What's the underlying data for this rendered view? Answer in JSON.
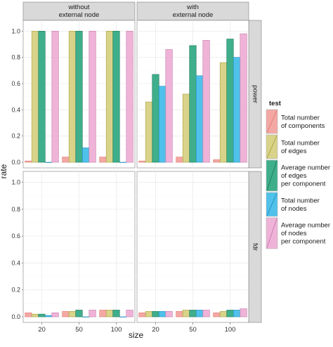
{
  "chart_data": {
    "type": "bar",
    "facet_cols": [
      "without\nexternal node",
      "with\nexternal node"
    ],
    "facet_rows": [
      "power",
      "fdr"
    ],
    "categories": [
      "20",
      "50",
      "100"
    ],
    "xlabel": "size",
    "ylabel": "rate",
    "ylim": [
      0,
      1.05
    ],
    "yticks": [
      "0.0",
      "0.2",
      "0.4",
      "0.6",
      "0.8",
      "1.0"
    ],
    "ytick_values": [
      0,
      0.2,
      0.4,
      0.6,
      0.8,
      1.0
    ],
    "grid": true,
    "legend_position": "right",
    "legend_title": "test",
    "series": [
      {
        "name": "Total number of components",
        "label_lines": [
          "Total number",
          "of components"
        ],
        "color": "#f4a8a4",
        "stroke": "#e07a72"
      },
      {
        "name": "Total number of edges",
        "label_lines": [
          "Total number",
          "of edges"
        ],
        "color": "#d9d38a",
        "stroke": "#a8a23e"
      },
      {
        "name": "Average number of edges per component",
        "label_lines": [
          "Average number",
          "of edges",
          "per component"
        ],
        "color": "#3fae8a",
        "stroke": "#1f7a5c"
      },
      {
        "name": "Total number of nodes",
        "label_lines": [
          "Total number",
          "of nodes"
        ],
        "color": "#4fc1ea",
        "stroke": "#1f8fbf"
      },
      {
        "name": "Average number of nodes per component",
        "label_lines": [
          "Average number",
          "of nodes",
          "per component"
        ],
        "color": "#efb3d8",
        "stroke": "#c779aa"
      }
    ],
    "panels": [
      {
        "row": "power",
        "col": "without\nexternal node",
        "values": [
          [
            0.01,
            1.0,
            1.0,
            0.0,
            1.0
          ],
          [
            0.04,
            1.0,
            1.0,
            0.11,
            1.0
          ],
          [
            0.04,
            1.0,
            1.0,
            0.0,
            1.0
          ]
        ]
      },
      {
        "row": "power",
        "col": "with\nexternal node",
        "values": [
          [
            0.01,
            0.46,
            0.67,
            0.58,
            0.86
          ],
          [
            0.04,
            0.52,
            0.89,
            0.66,
            0.93
          ],
          [
            0.02,
            0.76,
            0.94,
            0.8,
            0.98
          ]
        ]
      },
      {
        "row": "fdr",
        "col": "without\nexternal node",
        "values": [
          [
            0.03,
            0.02,
            0.02,
            0.01,
            0.03
          ],
          [
            0.04,
            0.04,
            0.05,
            0.0,
            0.05
          ],
          [
            0.05,
            0.05,
            0.05,
            0.0,
            0.05
          ]
        ]
      },
      {
        "row": "fdr",
        "col": "with\nexternal node",
        "values": [
          [
            0.03,
            0.04,
            0.04,
            0.04,
            0.04
          ],
          [
            0.04,
            0.05,
            0.05,
            0.05,
            0.05
          ],
          [
            0.03,
            0.04,
            0.05,
            0.05,
            0.06
          ]
        ]
      }
    ]
  }
}
